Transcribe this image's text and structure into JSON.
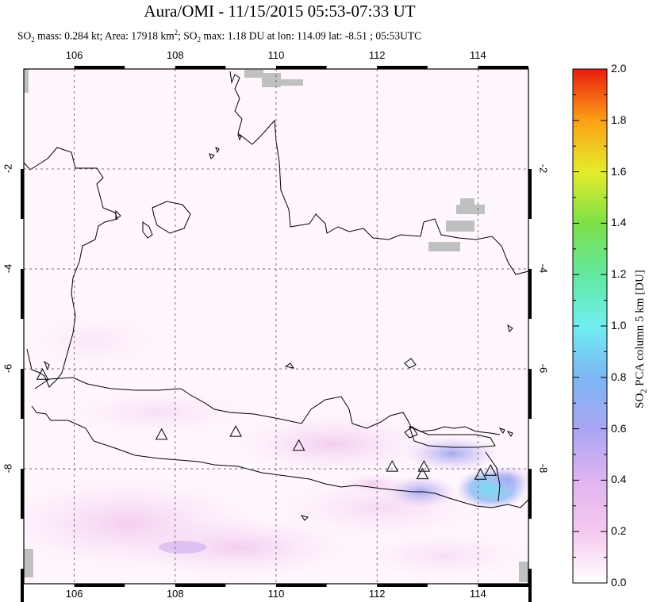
{
  "title": "Aura/OMI - 11/15/2015 05:53-07:33 UT",
  "subtitle": {
    "p1": "SO",
    "s1": "2",
    "p2": " mass: 0.284 kt; Area: 17918 km",
    "s2": "2",
    "p3": "; SO",
    "s3": "2",
    "p4": " max: 1.18 DU at lon: 114.09 lat: -8.51 ; 05:53UTC"
  },
  "map": {
    "lon_range": [
      105.0,
      115.0
    ],
    "lat_range": [
      -10.3,
      0.0
    ],
    "lon_ticks": [
      "106",
      "108",
      "110",
      "112",
      "114"
    ],
    "lat_ticks": [
      "-2",
      "-4",
      "-6",
      "-8"
    ],
    "volcano_marker": "triangle-icon",
    "volcanoes": [
      {
        "lon": 105.37,
        "lat": -6.13
      },
      {
        "lon": 107.73,
        "lat": -7.33
      },
      {
        "lon": 109.2,
        "lat": -7.27
      },
      {
        "lon": 110.45,
        "lat": -7.55
      },
      {
        "lon": 112.3,
        "lat": -7.97
      },
      {
        "lon": 112.93,
        "lat": -7.97
      },
      {
        "lon": 112.9,
        "lat": -8.12
      },
      {
        "lon": 114.05,
        "lat": -8.13
      },
      {
        "lon": 114.25,
        "lat": -8.05
      }
    ],
    "missing_color": "#c0c0c0"
  },
  "colorbar": {
    "label_prefix": "SO",
    "label_sub": "2",
    "label_suffix": " PCA column 5 km [DU]",
    "ticks": [
      "2.0",
      "1.8",
      "1.6",
      "1.4",
      "1.2",
      "1.0",
      "0.8",
      "0.6",
      "0.4",
      "0.2",
      "0.0"
    ],
    "colors": [
      "#ffffff",
      "#f6c8f0",
      "#d8a8f0",
      "#a9a6f4",
      "#7cc6f2",
      "#70eef0",
      "#62e8a0",
      "#7ee048",
      "#e4ec2a",
      "#fcb016",
      "#f4501a",
      "#e81c0e"
    ]
  }
}
